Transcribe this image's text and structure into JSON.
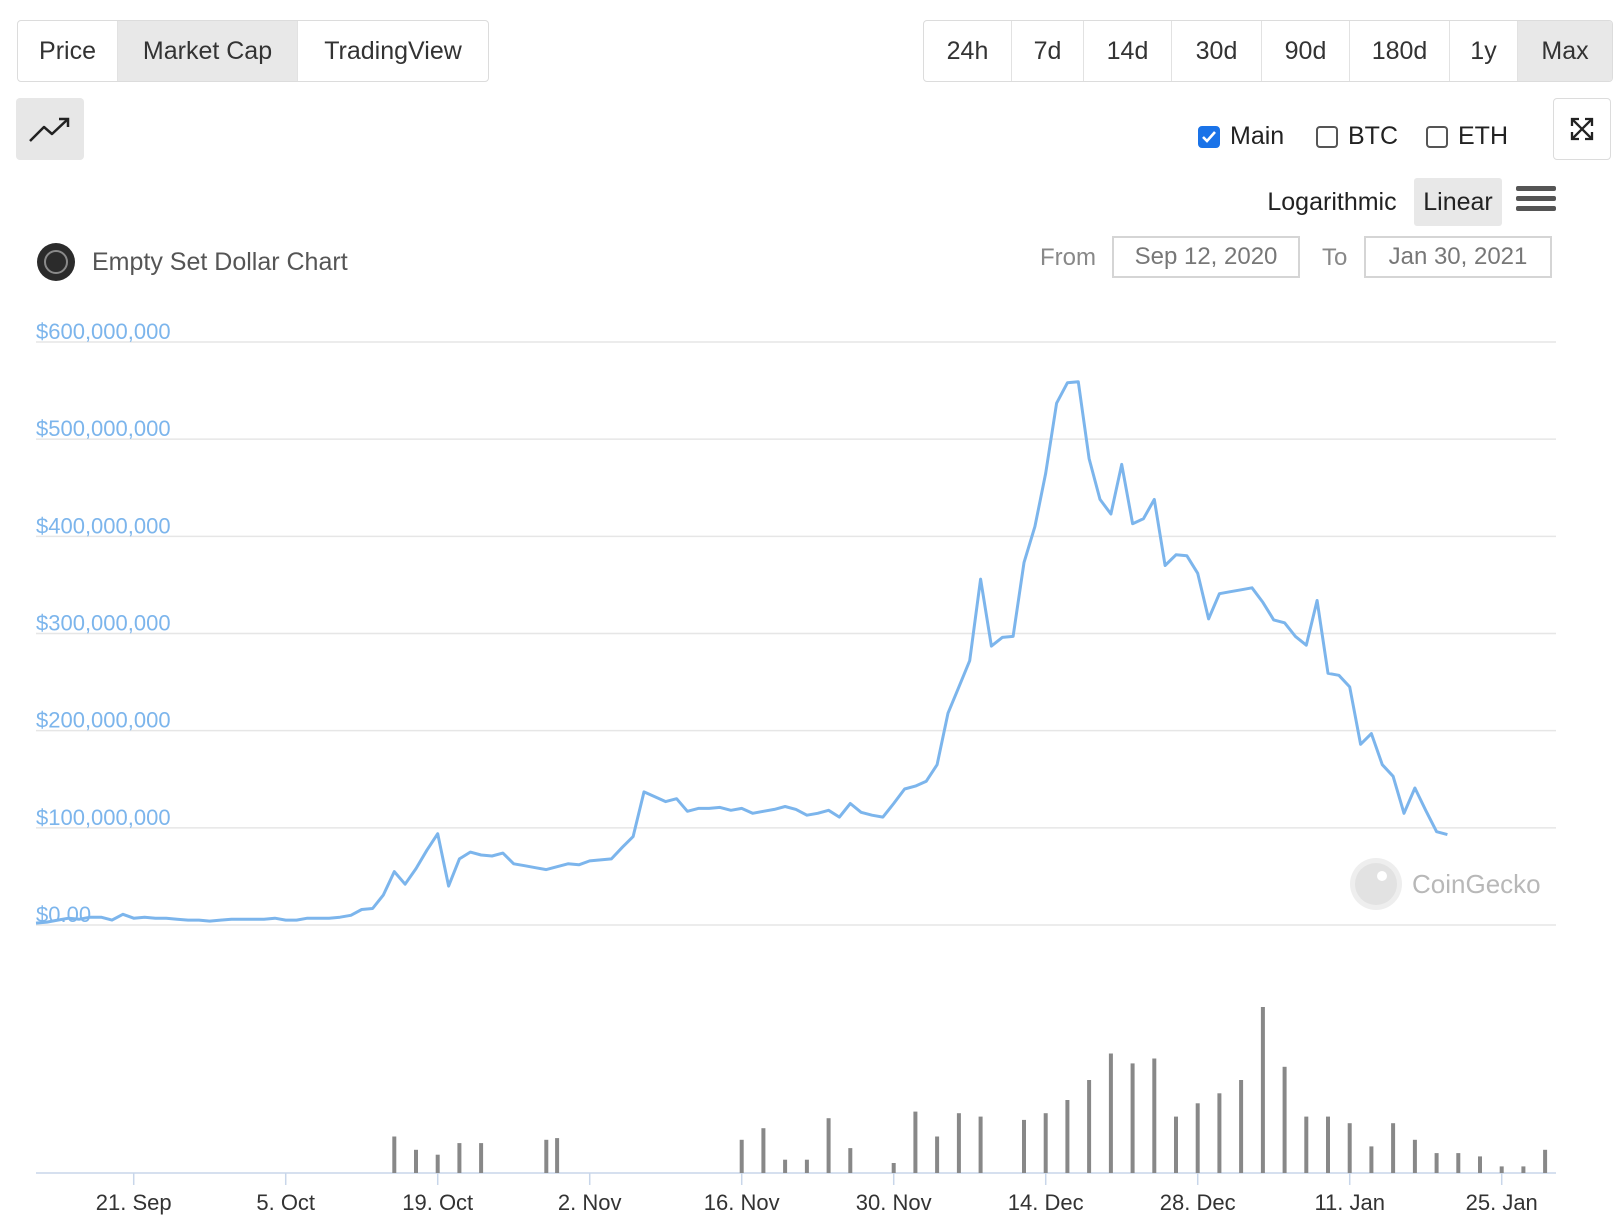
{
  "view_tabs": [
    {
      "label": "Price",
      "active": false
    },
    {
      "label": "Market Cap",
      "active": true
    },
    {
      "label": "TradingView",
      "active": false
    }
  ],
  "range_tabs": [
    {
      "label": "24h",
      "active": false
    },
    {
      "label": "7d",
      "active": false
    },
    {
      "label": "14d",
      "active": false
    },
    {
      "label": "30d",
      "active": false
    },
    {
      "label": "90d",
      "active": false
    },
    {
      "label": "180d",
      "active": false
    },
    {
      "label": "1y",
      "active": false
    },
    {
      "label": "Max",
      "active": true
    }
  ],
  "toggles": [
    {
      "label": "Main",
      "checked": true
    },
    {
      "label": "BTC",
      "checked": false
    },
    {
      "label": "ETH",
      "checked": false
    }
  ],
  "scale": {
    "logarithmic": "Logarithmic",
    "linear": "Linear",
    "selected": "linear"
  },
  "chart_title": "Empty Set Dollar Chart",
  "date_range": {
    "from_label": "From",
    "from_value": "Sep 12, 2020",
    "to_label": "To",
    "to_value": "Jan 30, 2021"
  },
  "watermark": "CoinGecko",
  "colors": {
    "line": "#7cb5ec",
    "volume": "#888888",
    "active_bg": "#e8e8e8",
    "checkbox": "#1a73e8"
  },
  "chart_data": {
    "type": "line",
    "title": "Empty Set Dollar Chart",
    "y_tick_labels": [
      "$0.00",
      "$100,000,000",
      "$200,000,000",
      "$300,000,000",
      "$400,000,000",
      "$500,000,000",
      "$600,000,000"
    ],
    "ylim": [
      0,
      600000000
    ],
    "x_tick_labels": [
      "21. Sep",
      "5. Oct",
      "19. Oct",
      "2. Nov",
      "16. Nov",
      "30. Nov",
      "14. Dec",
      "28. Dec",
      "11. Jan",
      "25. Jan"
    ],
    "x_tick_days": [
      9,
      23,
      37,
      51,
      65,
      79,
      93,
      107,
      121,
      135
    ],
    "xlim_days": [
      0,
      140
    ],
    "grid": true,
    "series": [
      {
        "values_million_usd": [
          2,
          3,
          5,
          7,
          6,
          8,
          8,
          5,
          11,
          7,
          8,
          7,
          7,
          6,
          5,
          5,
          4,
          5,
          6,
          6,
          6,
          6,
          7,
          5,
          5,
          7,
          7,
          7,
          8,
          10,
          16,
          17,
          31,
          55,
          42,
          58,
          77,
          94,
          40,
          68,
          75,
          72,
          71,
          74,
          63,
          61,
          59,
          57,
          60,
          63,
          62,
          66,
          67,
          68,
          80,
          91,
          137,
          132,
          127,
          130,
          117,
          120,
          120,
          121,
          118,
          120,
          115,
          117,
          119,
          122,
          119,
          113,
          115,
          118,
          111,
          125,
          116,
          113,
          111,
          125,
          140,
          143,
          148,
          165,
          218,
          245,
          272,
          356,
          287,
          296,
          297,
          373,
          410,
          465,
          537,
          558,
          559,
          480,
          438,
          423,
          474,
          413,
          418,
          438,
          370,
          381,
          380,
          362,
          315,
          341,
          343,
          345,
          347,
          332,
          314,
          311,
          297,
          288,
          334,
          259,
          257,
          245,
          186,
          197,
          165,
          153,
          115,
          141,
          118,
          96,
          93
        ]
      }
    ],
    "volume": {
      "days": [
        33,
        35,
        37,
        39,
        41,
        47,
        48,
        65,
        67,
        69,
        71,
        73,
        75,
        79,
        81,
        83,
        85,
        87,
        91,
        93,
        95,
        97,
        99,
        101,
        103,
        105,
        107,
        109,
        111,
        113,
        115,
        117,
        119,
        121,
        123,
        125,
        127,
        129,
        131,
        133,
        135,
        137,
        139
      ],
      "relative": [
        0.22,
        0.14,
        0.11,
        0.18,
        0.18,
        0.2,
        0.21,
        0.2,
        0.27,
        0.08,
        0.08,
        0.33,
        0.15,
        0.06,
        0.37,
        0.22,
        0.36,
        0.34,
        0.32,
        0.36,
        0.44,
        0.56,
        0.72,
        0.66,
        0.69,
        0.34,
        0.42,
        0.48,
        0.56,
        1.0,
        0.64,
        0.34,
        0.34,
        0.3,
        0.16,
        0.3,
        0.2,
        0.12,
        0.12,
        0.1,
        0.04,
        0.04,
        0.14
      ]
    }
  }
}
